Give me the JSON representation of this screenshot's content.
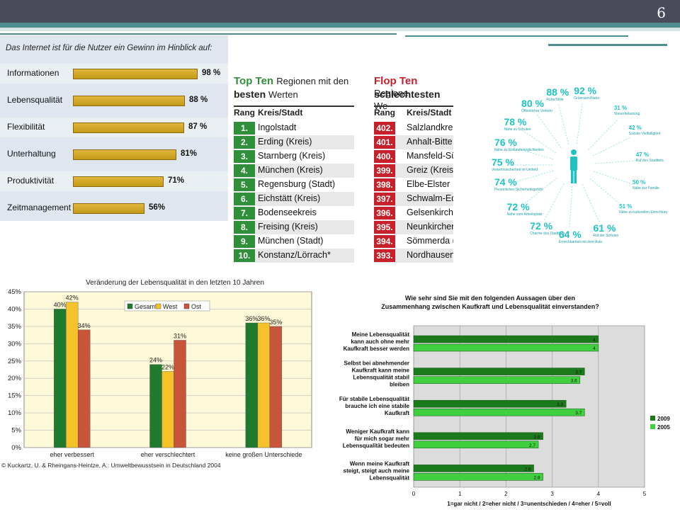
{
  "slide_number": "6",
  "colors": {
    "header_bar": "#4a4b5a",
    "accent_teal": "#4e8e8c",
    "gold_bar": "#d2a92b",
    "green_rank": "#2f8f3a",
    "red_rank": "#c8202a",
    "cyan": "#1ec2c2",
    "gesamt": "#1f7a2e",
    "west": "#f6c22c",
    "ost": "#c8553a",
    "green2009": "#1b7a1b",
    "green2005": "#3fcf3f"
  },
  "internet_chart": {
    "title": "Das Internet ist für die Nutzer ein Gewinn im Hinblick auf:",
    "chart_data": {
      "type": "bar",
      "categories": [
        "Informationen",
        "Lebensqualität",
        "Flexibilität",
        "Unterhaltung",
        "Produktivität",
        "Zeitmanagement"
      ],
      "values": [
        98,
        88,
        87,
        81,
        71,
        56
      ],
      "value_labels": [
        "98 %",
        "88 %",
        "87 %",
        "81%",
        "71%",
        "56%"
      ]
    }
  },
  "top_ten": {
    "head_bold": "Top Ten",
    "head_rest": "Regionen mit den",
    "head_line2_bold": "besten",
    "head_line2_rest": "Werten",
    "col_rang": "Rang",
    "col_kreis": "Kreis/Stadt",
    "rows": [
      {
        "rank": "1.",
        "name": "Ingolstadt"
      },
      {
        "rank": "2.",
        "name": "Erding (Kreis)"
      },
      {
        "rank": "3.",
        "name": "Starnberg (Kreis)"
      },
      {
        "rank": "4.",
        "name": "München (Kreis)"
      },
      {
        "rank": "5.",
        "name": "Regensburg (Stadt)"
      },
      {
        "rank": "6.",
        "name": "Eichstätt (Kreis)"
      },
      {
        "rank": "7.",
        "name": "Bodenseekreis"
      },
      {
        "rank": "8.",
        "name": "Freising (Kreis)"
      },
      {
        "rank": "9.",
        "name": "München (Stadt)"
      },
      {
        "rank": "10.",
        "name": "Konstanz/Lörrach*"
      }
    ]
  },
  "flop_ten": {
    "head_bold": "Flop Ten",
    "head_rest": "Regione",
    "head_line2_bold": "schlechtesten",
    "head_line2_rest": "We",
    "col_rang": "Rang",
    "col_kreis": "Kreis/Stadt",
    "rows": [
      {
        "rank": "402.",
        "name": "Salzlandkrei"
      },
      {
        "rank": "401.",
        "name": "Anhalt-Bitte"
      },
      {
        "rank": "400.",
        "name": "Mansfeld-Sü"
      },
      {
        "rank": "399.",
        "name": "Greiz (Kreis)"
      },
      {
        "rank": "398.",
        "name": "Elbe-Elster"
      },
      {
        "rank": "397.",
        "name": "Schwalm-Ed"
      },
      {
        "rank": "396.",
        "name": "Gelsenkirche"
      },
      {
        "rank": "395.",
        "name": "Neunkircher"
      },
      {
        "rank": "394.",
        "name": "Sömmerda ("
      },
      {
        "rank": "393.",
        "name": "Nordhausen"
      }
    ]
  },
  "radial": {
    "items": [
      {
        "pct": "92 %",
        "label": "Grünraum/Natur"
      },
      {
        "pct": "88 %",
        "label": "Ruhe/Stille"
      },
      {
        "pct": "80 %",
        "label": "Öffentlicher Verkehr"
      },
      {
        "pct": "78 %",
        "label": "Nähe zu Schulen"
      },
      {
        "pct": "76 %",
        "label": "Nähe zu Einkaufsmöglichkeiten"
      },
      {
        "pct": "75 %",
        "label": "Verkehrssicherheit im Umfeld"
      },
      {
        "pct": "74 %",
        "label": "Persönliches Sicherheitsgefühl"
      },
      {
        "pct": "72 %",
        "label": "Nähe zum Arbeitsplatz"
      },
      {
        "pct": "72 %",
        "label": "Charme des Stadtteils"
      },
      {
        "pct": "64 %",
        "label": "Erreichbarkeit mit dem Auto"
      },
      {
        "pct": "61 %",
        "label": "Ruf der Schulen"
      },
      {
        "pct": "51 %",
        "label": "Nähe zu kulturellen Einrichtungen"
      },
      {
        "pct": "50 %",
        "label": "Nähe zur Familie"
      },
      {
        "pct": "47 %",
        "label": "Ruf des Stadtteils"
      },
      {
        "pct": "42 %",
        "label": "Soziale Vielfältigkeit"
      },
      {
        "pct": "31 %",
        "label": "Steuerbelastung"
      }
    ]
  },
  "lebensqualitaet_chart": {
    "title": "Veränderung der Lebensqualität in den letzten 10 Jahren",
    "source": "© Kuckartz, U. & Rheingans-Heintze, A.: Umweltbewusstsein in Deutschland 2004",
    "chart_data": {
      "type": "bar",
      "categories": [
        "eher verbessert",
        "eher verschlechtert",
        "keine großen Unterschiede"
      ],
      "series": [
        {
          "name": "Gesamt",
          "values": [
            40,
            24,
            36
          ]
        },
        {
          "name": "West",
          "values": [
            42,
            22,
            36
          ]
        },
        {
          "name": "Ost",
          "values": [
            34,
            31,
            35
          ]
        }
      ],
      "ylim": [
        0,
        45
      ],
      "yticks": [
        "0%",
        "5%",
        "10%",
        "15%",
        "20%",
        "25%",
        "30%",
        "35%",
        "40%",
        "45%"
      ]
    }
  },
  "kaufkraft_chart": {
    "title_line1": "Wie sehr sind Sie mit den folgenden Aussagen über den",
    "title_line2": "Zusammenhang zwischen Kaufkraft und Lebensqualität einverstanden?",
    "xaxis_caption": "1=gar nicht / 2=eher nicht / 3=unentschieden / 4=eher / 5=voll",
    "chart_data": {
      "type": "bar",
      "categories": [
        [
          "Meine Lebensqualität",
          "kann auch ohne mehr",
          "Kaufkraft besser werden"
        ],
        [
          "Selbst bei abnehmender",
          "Kaufkraft kann meine",
          "Lebensqualität stabil",
          "bleiben"
        ],
        [
          "Für stabile Lebensqualität",
          "brauche ich eine stabile",
          "Kaufkraft"
        ],
        [
          "Weniger Kaufkraft kann",
          "für mich sogar mehr",
          "Lebensqualität bedeuten"
        ],
        [
          "Wenn meine Kaufkraft",
          "steigt, steigt auch meine",
          "Lebensqualität"
        ]
      ],
      "series": [
        {
          "name": "2009",
          "values": [
            4.0,
            3.7,
            3.3,
            2.8,
            2.6
          ],
          "labels": [
            "4",
            "3.7",
            "3.3",
            "2.8",
            "2.6"
          ]
        },
        {
          "name": "2005",
          "values": [
            4.0,
            3.6,
            3.7,
            2.7,
            2.8
          ],
          "labels": [
            "4",
            "3.6",
            "3.7",
            "2.7",
            "2.8"
          ]
        }
      ],
      "xlim": [
        0,
        5
      ],
      "xticks": [
        "0",
        "1",
        "2",
        "3",
        "4",
        "5"
      ]
    }
  }
}
